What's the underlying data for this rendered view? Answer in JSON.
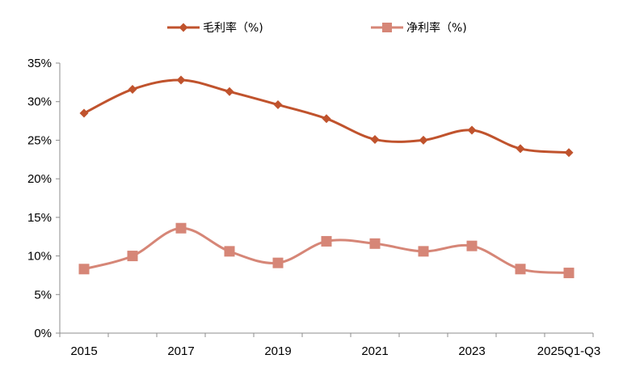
{
  "chart_data": {
    "type": "line",
    "x": [
      "2015",
      "2016",
      "2017",
      "2018",
      "2019",
      "2020",
      "2021",
      "2022",
      "2023",
      "2024",
      "2025Q1-Q3"
    ],
    "x_tick_labels": [
      "2015",
      "",
      "2017",
      "",
      "2019",
      "",
      "2021",
      "",
      "2023",
      "",
      "2025Q1-Q3"
    ],
    "series": [
      {
        "name": "毛利率（%)",
        "color": "#C0532D",
        "marker": "diamond",
        "values": [
          28.5,
          31.6,
          32.8,
          31.3,
          29.6,
          27.8,
          25.1,
          25.0,
          26.3,
          23.9,
          23.4
        ]
      },
      {
        "name": "净利率（%)",
        "color": "#D68677",
        "marker": "square",
        "values": [
          8.3,
          10.0,
          13.6,
          10.6,
          9.1,
          11.9,
          11.6,
          10.6,
          11.3,
          8.3,
          7.8
        ]
      }
    ],
    "ylim": [
      0,
      35
    ],
    "y_ticks": [
      0,
      5,
      10,
      15,
      20,
      25,
      30,
      35
    ],
    "y_tick_labels": [
      "0%",
      "5%",
      "10%",
      "15%",
      "20%",
      "25%",
      "30%",
      "35%"
    ],
    "legend_position": "top",
    "grid": false
  }
}
